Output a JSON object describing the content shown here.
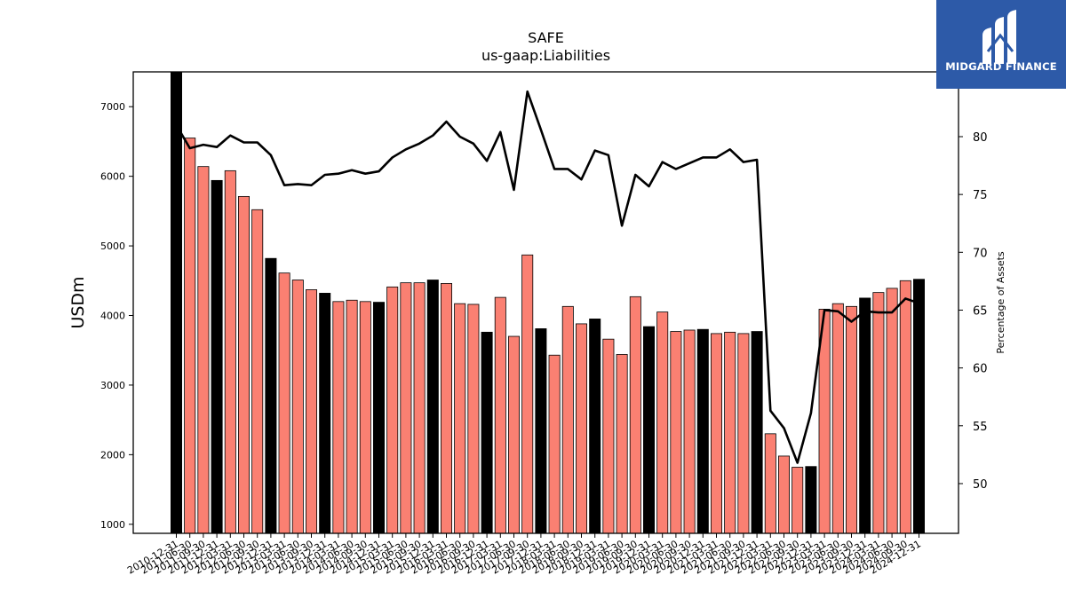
{
  "logo": {
    "text": "MIDGARD FINANCE",
    "icon": "midgard-m-logo-icon",
    "bg_color": "#2d5aa8"
  },
  "chart_data": {
    "type": "bar",
    "title": "SAFE",
    "subtitle": "us-gaap:Liabilities",
    "ylabel": "USDm",
    "y2label": "Percentage of Assets",
    "ylim": [
      870,
      7500
    ],
    "y2lim": [
      45.7,
      85.6
    ],
    "yticks": [
      1000,
      2000,
      3000,
      4000,
      5000,
      6000,
      7000
    ],
    "y2ticks": [
      50,
      55,
      60,
      65,
      70,
      75,
      80
    ],
    "colors": {
      "annual": "#000000",
      "quarter": "#fa8072",
      "line": "#000000"
    },
    "categories": [
      "2010-12-31",
      "2011-06-30",
      "2011-09-30",
      "2011-12-31",
      "2012-03-31",
      "2012-06-30",
      "2012-09-30",
      "2012-12-31",
      "2013-03-31",
      "2013-06-30",
      "2013-09-30",
      "2013-12-31",
      "2014-03-31",
      "2014-06-30",
      "2014-09-30",
      "2014-12-31",
      "2015-03-31",
      "2015-06-30",
      "2015-09-30",
      "2015-12-31",
      "2016-03-31",
      "2016-06-30",
      "2016-09-30",
      "2016-12-31",
      "2017-03-31",
      "2017-06-30",
      "2017-09-30",
      "2017-12-31",
      "2018-03-31",
      "2018-06-30",
      "2018-09-30",
      "2018-12-31",
      "2019-03-31",
      "2019-06-30",
      "2019-09-30",
      "2019-12-31",
      "2020-03-31",
      "2020-06-30",
      "2020-09-30",
      "2020-12-31",
      "2021-03-31",
      "2021-06-30",
      "2021-09-30",
      "2021-12-31",
      "2022-03-31",
      "2022-06-30",
      "2022-09-30",
      "2022-12-31",
      "2023-03-31",
      "2023-06-30",
      "2023-09-30",
      "2023-12-31",
      "2024-03-31",
      "2024-06-30",
      "2024-09-30",
      "2024-12-31"
    ],
    "xtick_labels": [
      "2010-12-31",
      "2011-06-30",
      "2011-09-30",
      "2011-12-31",
      "2012-03-31",
      "2012-06-30",
      "2012-09-30",
      "2012-12-31",
      "2013-03-31",
      "2013-06-30",
      "2013-09-30",
      "2013-12-31",
      "2014-03-31",
      "2014-06-30",
      "2014-09-30",
      "2014-12-31",
      "2015-03-31",
      "2015-06-30",
      "2015-09-30",
      "2015-12-31",
      "2016-03-31",
      "2016-06-30",
      "2016-09-30",
      "2016-12-31",
      "2017-03-31",
      "2017-06-30",
      "2017-09-30",
      "2017-12-31",
      "2018-03-31",
      "2018-06-30",
      "2018-09-30",
      "2018-12-31",
      "2019-03-31",
      "2019-06-30",
      "2019-09-30",
      "2019-12-31",
      "2020-03-31",
      "2020-06-30",
      "2020-09-30",
      "2020-12-31",
      "2021-03-31",
      "2021-06-30",
      "2021-09-30",
      "2021-12-31",
      "2022-03-31",
      "2022-06-30",
      "2022-09-30",
      "2022-12-31",
      "2023-03-31",
      "2023-06-30",
      "2023-09-30",
      "2023-12-31",
      "2024-03-31",
      "2024-06-30",
      "2024-09-30",
      "2024-12-31"
    ],
    "annual_flags": [
      1,
      0,
      0,
      1,
      0,
      0,
      0,
      1,
      0,
      0,
      0,
      1,
      0,
      0,
      0,
      1,
      0,
      0,
      0,
      1,
      0,
      0,
      0,
      1,
      0,
      0,
      0,
      1,
      0,
      0,
      0,
      1,
      0,
      0,
      0,
      1,
      0,
      0,
      0,
      1,
      0,
      0,
      0,
      1,
      0,
      0,
      0,
      1,
      0,
      0,
      0,
      1,
      0,
      0,
      0,
      1
    ],
    "series": [
      {
        "name": "Liabilities",
        "values": [
          7500,
          6550,
          6140,
          5940,
          6080,
          5710,
          5520,
          4820,
          4610,
          4510,
          4370,
          4320,
          4200,
          4220,
          4200,
          4190,
          4410,
          4470,
          4470,
          4510,
          4460,
          4170,
          4160,
          3760,
          4260,
          3700,
          4870,
          3810,
          3430,
          4130,
          3880,
          3950,
          3660,
          3440,
          4270,
          3840,
          4050,
          3770,
          3790,
          3800,
          3740,
          3760,
          3740,
          3770,
          2300,
          1980,
          1820,
          1830,
          4090,
          4170,
          4130,
          4250,
          4330,
          4390,
          4500,
          4520
        ]
      },
      {
        "name": "Percentage of Assets",
        "values": [
          81.0,
          79.0,
          79.3,
          79.1,
          80.1,
          79.5,
          79.5,
          78.4,
          75.8,
          75.9,
          75.8,
          76.7,
          76.8,
          77.1,
          76.8,
          77.0,
          78.2,
          78.9,
          79.4,
          80.1,
          81.3,
          80.0,
          79.4,
          77.9,
          80.4,
          75.4,
          83.9,
          80.6,
          77.2,
          77.2,
          76.3,
          78.8,
          78.4,
          72.3,
          76.7,
          75.7,
          77.8,
          77.2,
          77.7,
          78.2,
          78.2,
          78.9,
          77.8,
          78.0,
          56.3,
          54.8,
          51.8,
          56.1,
          65.0,
          64.9,
          64.0,
          64.9,
          64.8,
          64.8,
          66.0,
          65.6
        ]
      }
    ]
  }
}
